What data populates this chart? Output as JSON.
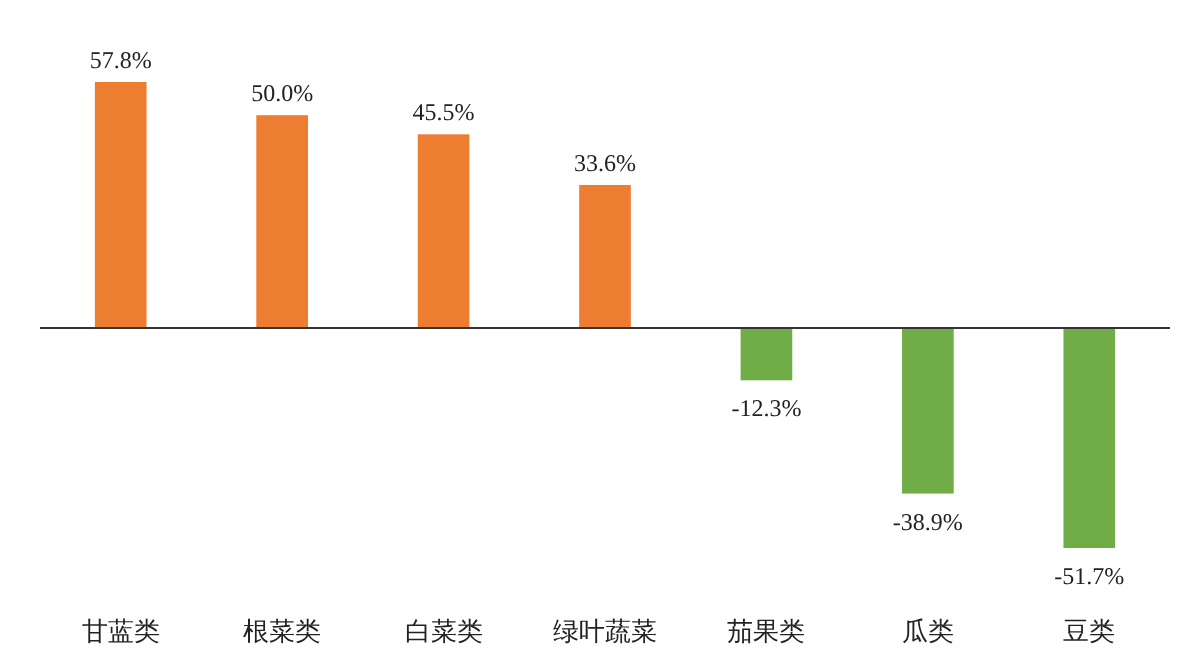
{
  "chart_data": {
    "type": "bar",
    "categories": [
      "甘蓝类",
      "根菜类",
      "白菜类",
      "绿叶蔬菜",
      "茄果类",
      "瓜类",
      "豆类"
    ],
    "values": [
      57.8,
      50.0,
      45.5,
      33.6,
      -12.3,
      -38.9,
      -51.7
    ],
    "colors": [
      "#ed7d31",
      "#ed7d31",
      "#ed7d31",
      "#ed7d31",
      "#70ad47",
      "#70ad47",
      "#70ad47"
    ],
    "value_labels": [
      "57.8%",
      "50.0%",
      "45.5%",
      "33.6%",
      "-12.3%",
      "-38.9%",
      "-51.7%"
    ]
  }
}
